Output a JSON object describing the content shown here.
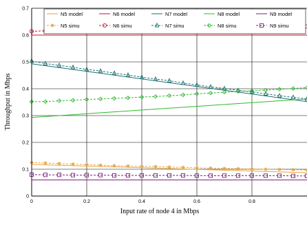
{
  "chart_data": {
    "type": "line",
    "title": "",
    "xlabel": "Input rate of node 4 in Mbps",
    "ylabel": "Throughput in Mbps",
    "xlim": [
      0,
      1.0
    ],
    "ylim": [
      0,
      0.7
    ],
    "xticks": [
      "0",
      "0.2",
      "0.4",
      "0.6",
      "0.8"
    ],
    "yticks": [
      "0",
      "0.1",
      "0.2",
      "0.3",
      "0.4",
      "0.5",
      "0.6",
      "0.7"
    ],
    "grid": true,
    "legend_placement": "top",
    "legend_columns": 5,
    "x": [
      0,
      0.05,
      0.1,
      0.15,
      0.2,
      0.25,
      0.3,
      0.35,
      0.4,
      0.45,
      0.5,
      0.55,
      0.6,
      0.65,
      0.7,
      0.75,
      0.8,
      0.85,
      0.9,
      0.95,
      1.0
    ],
    "series": [
      {
        "name": "N5 model",
        "color": "#e8a33d",
        "style": "solid",
        "marker": "none",
        "x": [
          0,
          1.0
        ],
        "values": [
          0.118,
          0.087
        ]
      },
      {
        "name": "N6 model",
        "color": "#c8102e",
        "style": "solid",
        "marker": "none",
        "x": [
          0,
          1.0
        ],
        "values": [
          0.6,
          0.6
        ]
      },
      {
        "name": "N7 model",
        "color": "#1a6e6e",
        "style": "solid",
        "marker": "none",
        "x": [
          0,
          1.0
        ],
        "values": [
          0.493,
          0.352
        ]
      },
      {
        "name": "N8 model",
        "color": "#2fb82f",
        "style": "solid",
        "marker": "none",
        "x": [
          0,
          1.0
        ],
        "values": [
          0.293,
          0.362
        ]
      },
      {
        "name": "N9 model",
        "color": "#7a1f7a",
        "style": "solid",
        "marker": "none",
        "x": [
          0,
          1.0
        ],
        "values": [
          0.06,
          0.06
        ]
      },
      {
        "name": "N5 simu",
        "color": "#e8a33d",
        "style": "dashed",
        "marker": "star",
        "values": [
          0.125,
          0.123,
          0.121,
          0.119,
          0.117,
          0.115,
          0.113,
          0.112,
          0.111,
          0.11,
          0.108,
          0.107,
          0.105,
          0.104,
          0.103,
          0.102,
          0.101,
          0.1,
          0.099,
          0.098,
          0.097
        ]
      },
      {
        "name": "N6 simu",
        "color": "#c8102e",
        "style": "dashed",
        "marker": "circle",
        "values": [
          0.614,
          0.616,
          0.618,
          0.619,
          0.62,
          0.621,
          0.622,
          0.623,
          0.623,
          0.624,
          0.625,
          0.625,
          0.626,
          0.627,
          0.628,
          0.628,
          0.629,
          0.63,
          0.631,
          0.632,
          0.632
        ]
      },
      {
        "name": "N7 simu",
        "color": "#1a6e6e",
        "style": "dashed",
        "marker": "triangle",
        "values": [
          0.503,
          0.494,
          0.487,
          0.48,
          0.472,
          0.466,
          0.458,
          0.451,
          0.443,
          0.436,
          0.43,
          0.421,
          0.414,
          0.407,
          0.401,
          0.394,
          0.388,
          0.381,
          0.374,
          0.368,
          0.362
        ]
      },
      {
        "name": "N8 simu",
        "color": "#2fb82f",
        "style": "dashed",
        "marker": "diamond",
        "values": [
          0.352,
          0.352,
          0.355,
          0.357,
          0.36,
          0.362,
          0.364,
          0.366,
          0.369,
          0.371,
          0.374,
          0.377,
          0.381,
          0.384,
          0.387,
          0.39,
          0.392,
          0.395,
          0.398,
          0.401,
          0.404
        ]
      },
      {
        "name": "N9 simu",
        "color": "#7a1f7a",
        "style": "dashed",
        "marker": "square",
        "values": [
          0.08,
          0.079,
          0.079,
          0.078,
          0.078,
          0.078,
          0.077,
          0.077,
          0.077,
          0.077,
          0.077,
          0.077,
          0.076,
          0.076,
          0.076,
          0.076,
          0.076,
          0.076,
          0.076,
          0.075,
          0.075
        ]
      }
    ]
  }
}
